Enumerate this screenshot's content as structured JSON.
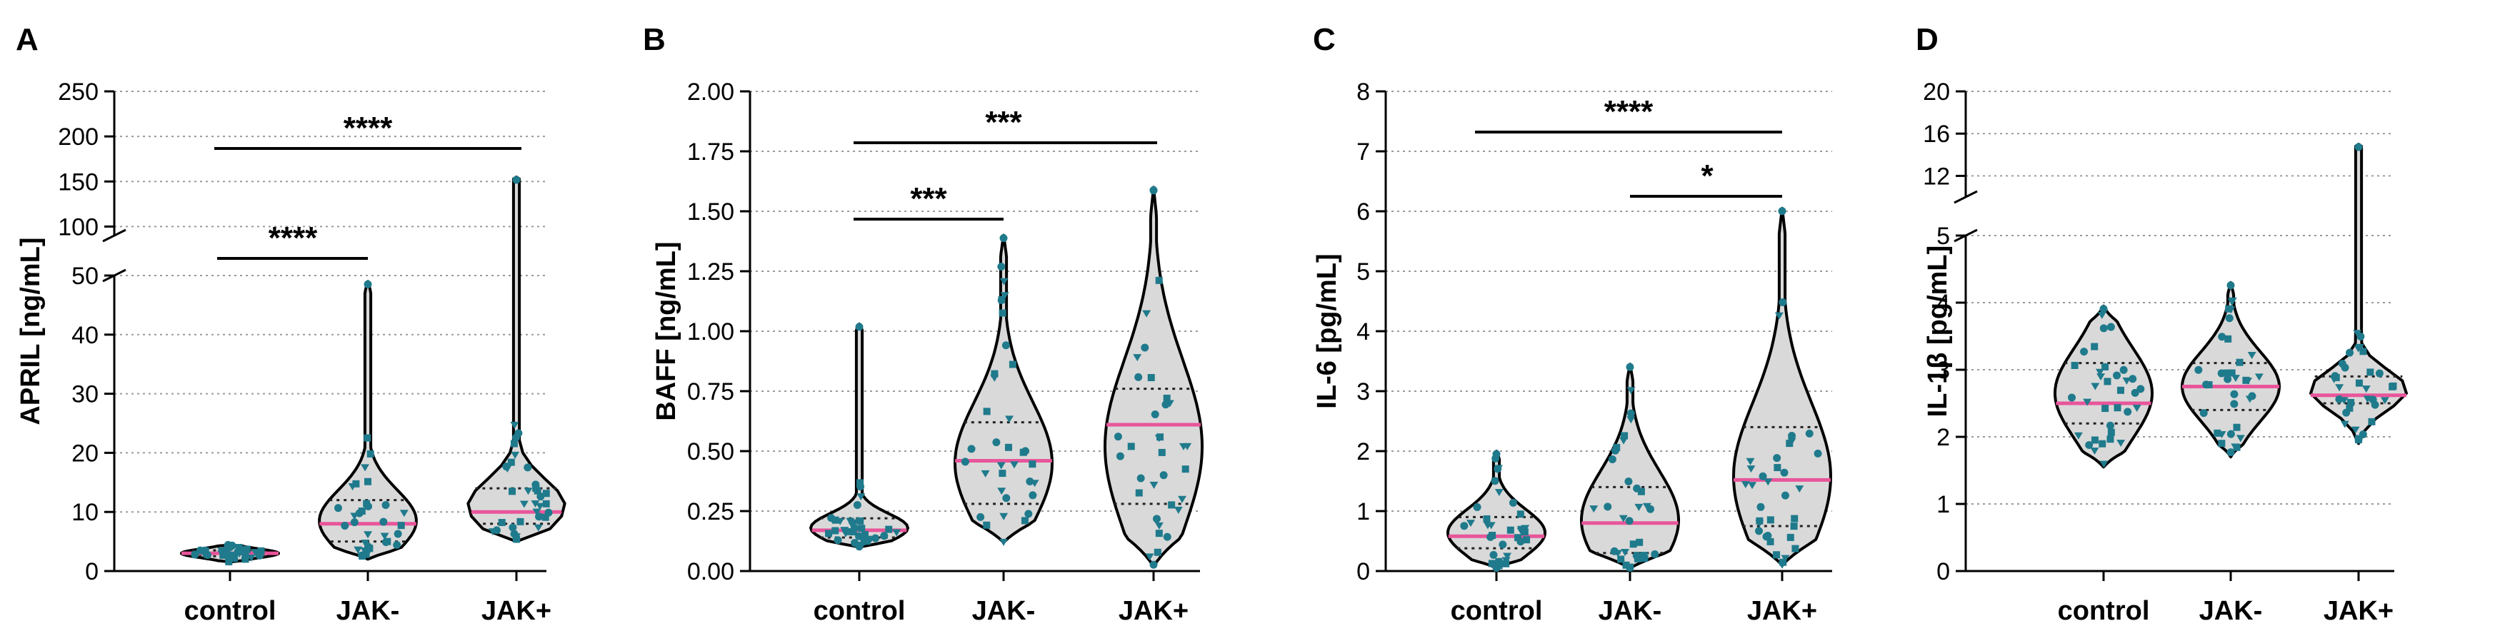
{
  "colors": {
    "violin_fill": "#d9d9d9",
    "violin_stroke": "#000000",
    "median": "#e8559a",
    "quartile": "#222222",
    "point": "#1f7a8c",
    "grid": "#9a9a9a"
  },
  "chart_data": [
    {
      "type": "violin",
      "panel_label": "A",
      "ylabel": "APRIL [ng/mL]",
      "categories": [
        "control",
        "JAK-",
        "JAK+"
      ],
      "y_axis_break": {
        "lower": {
          "range": [
            0,
            50
          ],
          "ticks": [
            0,
            10,
            20,
            30,
            40,
            50
          ]
        },
        "upper": {
          "range": [
            90,
            250
          ],
          "ticks": [
            100,
            150,
            200,
            250
          ]
        }
      },
      "grid": "dotted-horizontal",
      "groups": [
        {
          "name": "control",
          "min": 1.5,
          "q1": 2.5,
          "median": 3,
          "q3": 3.5,
          "max": 4.5
        },
        {
          "name": "JAK-",
          "min": 2,
          "q1": 5,
          "median": 8,
          "q3": 12,
          "max": 49
        },
        {
          "name": "JAK+",
          "min": 5,
          "q1": 8,
          "median": 10,
          "q3": 14,
          "max": 155
        }
      ],
      "significance": [
        {
          "from": "control",
          "to": "JAK-",
          "label": "****"
        },
        {
          "from": "control",
          "to": "JAK+",
          "label": "****"
        }
      ]
    },
    {
      "type": "violin",
      "panel_label": "B",
      "ylabel": "BAFF [ng/mL]",
      "categories": [
        "control",
        "JAK-",
        "JAK+"
      ],
      "ylim": [
        0,
        2
      ],
      "ticks": [
        "0.00",
        "0.25",
        "0.50",
        "0.75",
        "1.00",
        "1.25",
        "1.50",
        "1.75",
        "2.00"
      ],
      "grid": "dotted-horizontal",
      "groups": [
        {
          "name": "control",
          "min": 0.1,
          "q1": 0.14,
          "median": 0.17,
          "q3": 0.22,
          "max": 1.03
        },
        {
          "name": "JAK-",
          "min": 0.12,
          "q1": 0.28,
          "median": 0.46,
          "q3": 0.62,
          "max": 1.4
        },
        {
          "name": "JAK+",
          "min": 0.02,
          "q1": 0.28,
          "median": 0.61,
          "q3": 0.76,
          "max": 1.6
        }
      ],
      "significance": [
        {
          "from": "control",
          "to": "JAK-",
          "label": "***"
        },
        {
          "from": "control",
          "to": "JAK+",
          "label": "***"
        }
      ]
    },
    {
      "type": "violin",
      "panel_label": "C",
      "ylabel": "IL-6 [pg/mL]",
      "categories": [
        "control",
        "JAK-",
        "JAK+"
      ],
      "ylim": [
        0,
        8
      ],
      "ticks": [
        "0",
        "1",
        "2",
        "3",
        "4",
        "5",
        "6",
        "7",
        "8"
      ],
      "grid": "dotted-horizontal",
      "groups": [
        {
          "name": "control",
          "min": 0.05,
          "q1": 0.38,
          "median": 0.58,
          "q3": 0.9,
          "max": 2
        },
        {
          "name": "JAK-",
          "min": 0.05,
          "q1": 0.3,
          "median": 0.8,
          "q3": 1.4,
          "max": 3.45
        },
        {
          "name": "JAK+",
          "min": 0.1,
          "q1": 0.75,
          "median": 1.52,
          "q3": 2.4,
          "max": 6.05
        }
      ],
      "significance": [
        {
          "from": "JAK-",
          "to": "JAK+",
          "label": "*"
        },
        {
          "from": "control",
          "to": "JAK+",
          "label": "****"
        }
      ]
    },
    {
      "type": "violin",
      "panel_label": "D",
      "ylabel": "IL-1β [pg/mL]",
      "categories": [
        "control",
        "JAK-",
        "JAK+"
      ],
      "y_axis_break": {
        "lower": {
          "range": [
            0,
            5
          ],
          "ticks": [
            0,
            1,
            2,
            3,
            4,
            5
          ]
        },
        "upper": {
          "range": [
            10,
            20
          ],
          "ticks": [
            12,
            16,
            20
          ]
        }
      },
      "grid": "dotted-horizontal",
      "groups": [
        {
          "name": "control",
          "min": 1.55,
          "q1": 2.2,
          "median": 2.5,
          "q3": 3.1,
          "max": 3.95
        },
        {
          "name": "JAK-",
          "min": 1.7,
          "q1": 2.4,
          "median": 2.75,
          "q3": 3.1,
          "max": 4.3
        },
        {
          "name": "JAK+",
          "min": 1.9,
          "q1": 2.5,
          "median": 2.62,
          "q3": 2.9,
          "max": 15
        }
      ],
      "significance": []
    }
  ]
}
